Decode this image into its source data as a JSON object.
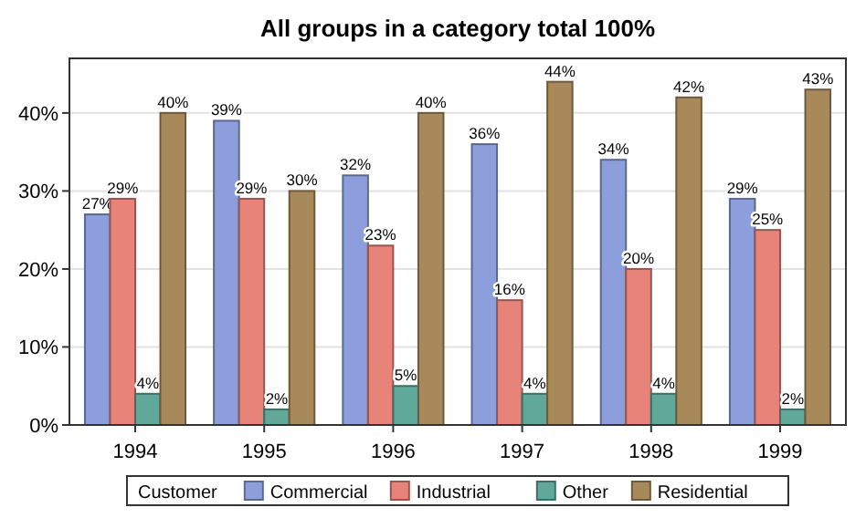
{
  "chart_data": {
    "type": "bar",
    "title": "All groups in a category total 100%",
    "categories": [
      "1994",
      "1995",
      "1996",
      "1997",
      "1998",
      "1999"
    ],
    "series": [
      {
        "name": "Commercial",
        "color": "#8c9fdc",
        "values": [
          27,
          39,
          32,
          36,
          34,
          29
        ],
        "value_labels": [
          "27%",
          "39%",
          "32%",
          "36%",
          "34%",
          "29%"
        ]
      },
      {
        "name": "Industrial",
        "color": "#e8837a",
        "values": [
          29,
          29,
          23,
          16,
          20,
          25
        ],
        "value_labels": [
          "29%",
          "29%",
          "23%",
          "16%",
          "20%",
          "25%"
        ]
      },
      {
        "name": "Other",
        "color": "#5fa89a",
        "values": [
          4,
          2,
          5,
          4,
          4,
          2
        ],
        "value_labels": [
          "4%",
          "2%",
          "5%",
          "4%",
          "4%",
          "2%"
        ]
      },
      {
        "name": "Residential",
        "color": "#a88a5a",
        "values": [
          40,
          30,
          40,
          44,
          42,
          43
        ],
        "value_labels": [
          "40%",
          "30%",
          "40%",
          "44%",
          "42%",
          "43%"
        ]
      }
    ],
    "ylim": [
      0,
      47
    ],
    "yticks": [
      {
        "value": 0,
        "label": "0%"
      },
      {
        "value": 10,
        "label": "10%"
      },
      {
        "value": 20,
        "label": "20%"
      },
      {
        "value": 30,
        "label": "30%"
      },
      {
        "value": 40,
        "label": "40%"
      }
    ],
    "grid": "y",
    "legend": "bottom",
    "legend_title": "Customer"
  }
}
